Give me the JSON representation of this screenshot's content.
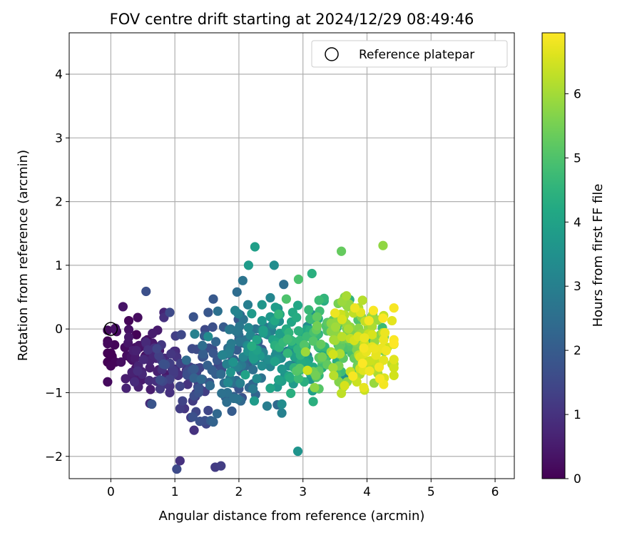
{
  "chart_data": {
    "type": "scatter",
    "title": "FOV centre drift starting at 2024/12/29 08:49:46",
    "xlabel": "Angular distance from reference (arcmin)",
    "ylabel": "Rotation from reference (arcmin)",
    "xlim": [
      -0.65,
      6.3
    ],
    "ylim": [
      -2.35,
      4.65
    ],
    "xticks": [
      0,
      1,
      2,
      3,
      4,
      5,
      6
    ],
    "yticks": [
      -2,
      -1,
      0,
      1,
      2,
      3,
      4
    ],
    "grid": true,
    "legend": {
      "position": "top-right",
      "entries": [
        "Reference platepar"
      ]
    },
    "reference_point": {
      "x": 0,
      "y": 0
    },
    "colorbar": {
      "label": "Hours from first FF file",
      "colormap": "viridis",
      "range": [
        0,
        6.95
      ],
      "ticks": [
        0,
        1,
        2,
        3,
        4,
        5,
        6
      ]
    },
    "points_note": "dense cloud of ~600 drift samples; coordinates listed below (x, y, hours)",
    "points": []
  },
  "colors": {
    "grid": "#b0b0b0",
    "reference_marker": "#000000"
  }
}
